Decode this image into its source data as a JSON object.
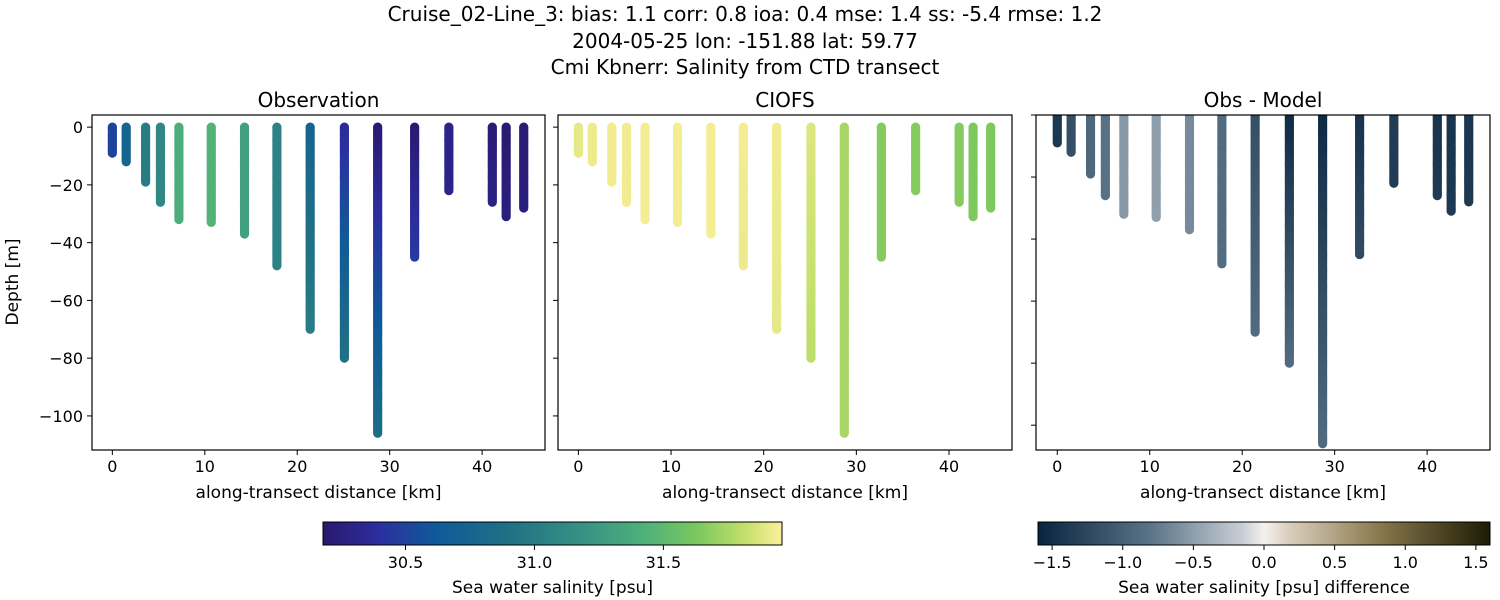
{
  "figure": {
    "title_lines": [
      "Cruise_02-Line_3: bias: 1.1  corr: 0.8  ioa: 0.4  mse: 1.4  ss: -5.4  rmse: 1.2",
      "2004-05-25 lon: -151.88 lat: 59.77",
      "Cmi Kbnerr: Salinity from CTD transect"
    ]
  },
  "chart_data": [
    {
      "type": "scatter",
      "title": "Observation",
      "xlabel": "along-transect distance [km]",
      "ylabel": "Depth [m]",
      "xlim": [
        -2.2,
        46.8
      ],
      "ylim": [
        -111.8,
        4.2
      ],
      "xticks": [
        0,
        10,
        20,
        30,
        40
      ],
      "yticks": [
        0,
        -20,
        -40,
        -60,
        -80,
        -100
      ],
      "colorbar": {
        "label": "Sea water salinity [psu]",
        "range": [
          30.18,
          31.96
        ],
        "ticks": [
          "30.5",
          "31.0",
          "31.5"
        ],
        "colormap": "haline"
      },
      "casts": [
        {
          "x": 0.0,
          "max_depth": -9,
          "salinity_top": 30.5,
          "salinity_bottom": 30.5
        },
        {
          "x": 1.5,
          "max_depth": -12,
          "salinity_top": 30.75,
          "salinity_bottom": 30.75
        },
        {
          "x": 3.6,
          "max_depth": -19,
          "salinity_top": 31.0,
          "salinity_bottom": 31.0
        },
        {
          "x": 5.2,
          "max_depth": -26,
          "salinity_top": 31.1,
          "salinity_bottom": 31.1
        },
        {
          "x": 7.2,
          "max_depth": -32,
          "salinity_top": 31.4,
          "salinity_bottom": 31.4
        },
        {
          "x": 10.7,
          "max_depth": -33,
          "salinity_top": 31.45,
          "salinity_bottom": 31.45
        },
        {
          "x": 14.3,
          "max_depth": -37,
          "salinity_top": 31.3,
          "salinity_bottom": 31.3
        },
        {
          "x": 17.8,
          "max_depth": -48,
          "salinity_top": 31.05,
          "salinity_bottom": 31.05
        },
        {
          "x": 21.4,
          "max_depth": -70,
          "salinity_top": 30.75,
          "salinity_bottom": 31.0
        },
        {
          "x": 25.1,
          "max_depth": -80,
          "salinity_top": 30.35,
          "salinity_bottom": 30.9
        },
        {
          "x": 28.7,
          "max_depth": -106,
          "salinity_top": 30.2,
          "salinity_bottom": 30.85
        },
        {
          "x": 32.7,
          "max_depth": -45,
          "salinity_top": 30.2,
          "salinity_bottom": 30.45
        },
        {
          "x": 36.4,
          "max_depth": -22,
          "salinity_top": 30.3,
          "salinity_bottom": 30.3
        },
        {
          "x": 41.1,
          "max_depth": -26,
          "salinity_top": 30.22,
          "salinity_bottom": 30.28
        },
        {
          "x": 42.6,
          "max_depth": -31,
          "salinity_top": 30.2,
          "salinity_bottom": 30.25
        },
        {
          "x": 44.5,
          "max_depth": -28,
          "salinity_top": 30.22,
          "salinity_bottom": 30.25
        }
      ]
    },
    {
      "type": "scatter",
      "title": "CIOFS",
      "xlabel": "along-transect distance [km]",
      "xlim": [
        -2.2,
        46.8
      ],
      "ylim": [
        -111.8,
        4.2
      ],
      "xticks": [
        0,
        10,
        20,
        30,
        40
      ],
      "casts": [
        {
          "x": 0.0,
          "max_depth": -9,
          "salinity_top": 31.9,
          "salinity_bottom": 31.9
        },
        {
          "x": 1.5,
          "max_depth": -12,
          "salinity_top": 31.92,
          "salinity_bottom": 31.92
        },
        {
          "x": 3.6,
          "max_depth": -19,
          "salinity_top": 31.93,
          "salinity_bottom": 31.93
        },
        {
          "x": 5.2,
          "max_depth": -26,
          "salinity_top": 31.93,
          "salinity_bottom": 31.93
        },
        {
          "x": 7.2,
          "max_depth": -32,
          "salinity_top": 31.94,
          "salinity_bottom": 31.94
        },
        {
          "x": 10.7,
          "max_depth": -33,
          "salinity_top": 31.94,
          "salinity_bottom": 31.94
        },
        {
          "x": 14.3,
          "max_depth": -37,
          "salinity_top": 31.94,
          "salinity_bottom": 31.94
        },
        {
          "x": 17.8,
          "max_depth": -48,
          "salinity_top": 31.94,
          "salinity_bottom": 31.92
        },
        {
          "x": 21.4,
          "max_depth": -70,
          "salinity_top": 31.93,
          "salinity_bottom": 31.9
        },
        {
          "x": 25.1,
          "max_depth": -80,
          "salinity_top": 31.88,
          "salinity_bottom": 31.8
        },
        {
          "x": 28.7,
          "max_depth": -106,
          "salinity_top": 31.75,
          "salinity_bottom": 31.75
        },
        {
          "x": 32.7,
          "max_depth": -45,
          "salinity_top": 31.66,
          "salinity_bottom": 31.66
        },
        {
          "x": 36.4,
          "max_depth": -22,
          "salinity_top": 31.66,
          "salinity_bottom": 31.66
        },
        {
          "x": 41.1,
          "max_depth": -26,
          "salinity_top": 31.66,
          "salinity_bottom": 31.66
        },
        {
          "x": 42.6,
          "max_depth": -31,
          "salinity_top": 31.64,
          "salinity_bottom": 31.64
        },
        {
          "x": 44.5,
          "max_depth": -28,
          "salinity_top": 31.64,
          "salinity_bottom": 31.64
        }
      ]
    },
    {
      "type": "scatter",
      "title": "Obs - Model",
      "xlabel": "along-transect distance [km]",
      "xlim": [
        -2.3,
        46.8
      ],
      "ylim": [
        -108,
        0
      ],
      "xticks": [
        0,
        10,
        20,
        30,
        40
      ],
      "colorbar": {
        "label": "Sea water salinity [psu] difference",
        "range": [
          -1.6,
          1.6
        ],
        "ticks": [
          "−1.5",
          "−1.0",
          "−0.5",
          "0.0",
          "0.5",
          "1.0",
          "1.5"
        ],
        "colormap": "diff"
      },
      "values": "observation minus CIOFS"
    }
  ]
}
